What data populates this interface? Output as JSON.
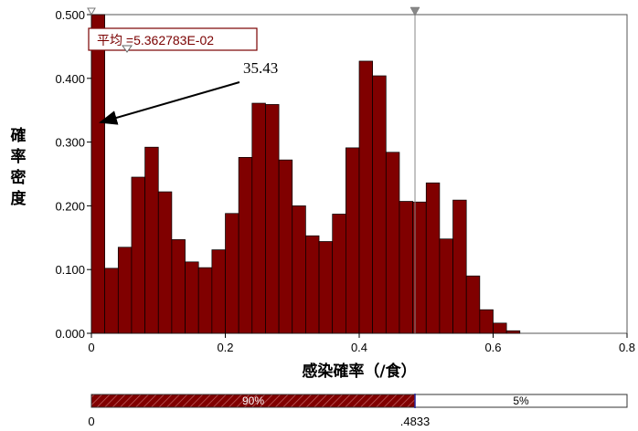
{
  "chart_data": {
    "type": "bar",
    "subtype": "histogram",
    "xlabel": "感染確率（/食）",
    "ylabel": "確率密度",
    "xlim": [
      0,
      0.8
    ],
    "ylim": [
      0,
      0.5
    ],
    "bin_width": 0.02,
    "x_ticks": [
      "0",
      "0.2",
      "0.4",
      "0.6",
      "0.8"
    ],
    "x_tick_values": [
      0,
      0.2,
      0.4,
      0.6,
      0.8
    ],
    "y_ticks": [
      "0.000",
      "0.100",
      "0.200",
      "0.300",
      "0.400",
      "0.500"
    ],
    "y_tick_values": [
      0,
      0.1,
      0.2,
      0.3,
      0.4,
      0.5
    ],
    "bin_starts": [
      0,
      0.02,
      0.04,
      0.06,
      0.08,
      0.1,
      0.12,
      0.14,
      0.16,
      0.18,
      0.2,
      0.22,
      0.24,
      0.26,
      0.28,
      0.3,
      0.32,
      0.34,
      0.36,
      0.38,
      0.4,
      0.42,
      0.44,
      0.46,
      0.48,
      0.5,
      0.52,
      0.54,
      0.56,
      0.58,
      0.6,
      0.62,
      0.64,
      0.66,
      0.68,
      0.7,
      0.72,
      0.74,
      0.76
    ],
    "values": [
      35.43,
      0.102,
      0.135,
      0.245,
      0.292,
      0.222,
      0.147,
      0.112,
      0.103,
      0.131,
      0.188,
      0.276,
      0.361,
      0.359,
      0.272,
      0.2,
      0.153,
      0.144,
      0.187,
      0.291,
      0.427,
      0.404,
      0.284,
      0.207,
      0.206,
      0.236,
      0.148,
      0.209,
      0.09,
      0.037,
      0.016,
      0.004,
      0.0,
      0.0,
      0.0,
      0.0,
      0.0,
      0.0,
      0.0
    ],
    "bar_color": "#800000",
    "mean_label": "平均 =5.362783E-02",
    "mean_value": 0.05362783,
    "annotation": "35.43",
    "marker_x": 0.4833,
    "grid": false
  },
  "range_bar": {
    "left_value": "0",
    "split_value": ".4833",
    "left_pct": "90%",
    "right_pct": "5%",
    "split_fraction": 0.4833,
    "max_value": 0.8,
    "left_color": "#800000",
    "right_color": "#ffffff"
  }
}
